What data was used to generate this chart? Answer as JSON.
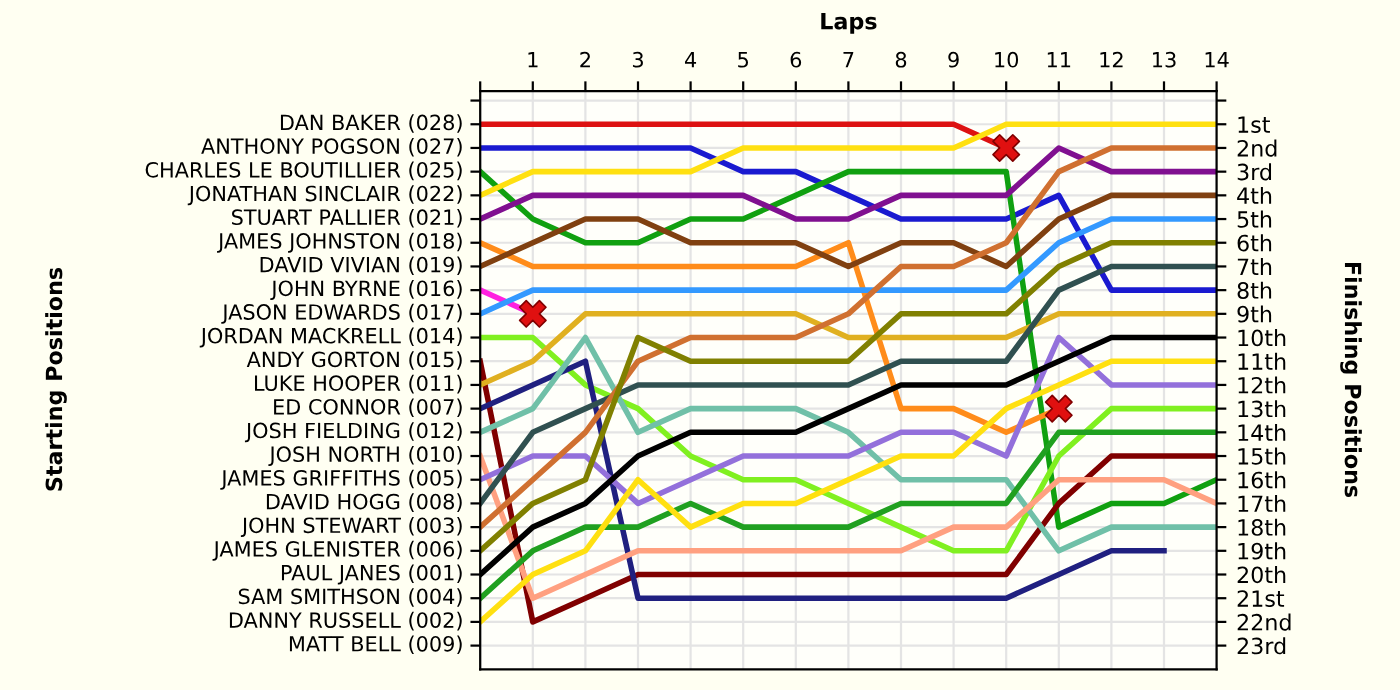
{
  "chart_data": {
    "type": "line",
    "xlabel": "Laps",
    "y2label": "Finishing Positions",
    "xlim": [
      0,
      14
    ],
    "xticks": [
      {
        "value": 0,
        "label": null
      },
      1,
      2,
      3,
      4,
      5,
      6,
      7,
      8,
      9,
      10,
      11,
      12,
      13,
      14
    ],
    "ylim": [
      24,
      -0.4
    ],
    "annotations": [
      "DAN BAKER (028)",
      "ANTHONY POGSON (027)",
      "CHARLES LE BOUTILLIER (025)",
      "JONATHAN SINCLAIR (022)",
      "STUART PALLIER (021)",
      "JAMES JOHNSTON (018)",
      "DAVID VIVIAN (019)",
      "JOHN BYRNE (016)",
      "JASON EDWARDS (017)",
      "JORDAN MACKRELL (014)",
      "ANDY GORTON (015)",
      "LUKE HOOPER (011)",
      "ED CONNOR (007)",
      "JOSH FIELDING (012)",
      "JOSH NORTH (010)",
      "JAMES GRIFFITHS (005)",
      "DAVID HOGG (008)",
      "JOHN STEWART (003)",
      "JAMES GLENISTER (006)",
      "PAUL JANES (001)",
      "SAM SMITHSON (004)",
      "DANNY RUSSELL (002)",
      "MATT BELL (009)",
      "Starting Positions"
    ],
    "yticks": [
      {
        "value": 0,
        "label": null
      },
      {
        "value": 1,
        "label": "1st"
      },
      {
        "value": 2,
        "label": "2nd"
      },
      {
        "value": 3,
        "label": "3rd"
      },
      {
        "value": 4,
        "label": "4th"
      },
      {
        "value": 5,
        "label": "5th"
      },
      {
        "value": 6,
        "label": "6th"
      },
      {
        "value": 7,
        "label": "7th"
      },
      {
        "value": 8,
        "label": "8th"
      },
      {
        "value": 9,
        "label": "9th"
      },
      {
        "value": 10,
        "label": "10th"
      },
      {
        "value": 11,
        "label": "11th"
      },
      {
        "value": 12,
        "label": "12th"
      },
      {
        "value": 13,
        "label": "13th"
      },
      {
        "value": 14,
        "label": "14th"
      },
      {
        "value": 15,
        "label": "15th"
      },
      {
        "value": 16,
        "label": "16th"
      },
      {
        "value": 17,
        "label": "17th"
      },
      {
        "value": 18,
        "label": "18th"
      },
      {
        "value": 19,
        "label": "19th"
      },
      {
        "value": 20,
        "label": "20th"
      },
      {
        "value": 21,
        "label": "21st"
      },
      {
        "value": 22,
        "label": "22nd"
      },
      {
        "value": 23,
        "label": "23rd"
      }
    ],
    "grid": true,
    "x": [
      0,
      1,
      2,
      3,
      4,
      5,
      6,
      7,
      8,
      9,
      10,
      11,
      12,
      13,
      14
    ],
    "series": [
      {
        "color": "#dd1111",
        "values": [
          1,
          1,
          1,
          1,
          1,
          1,
          1,
          1,
          1,
          1,
          2,
          null,
          null,
          null,
          null
        ]
      },
      {
        "color": "#1a1ad0",
        "values": [
          2,
          2,
          2,
          2,
          2,
          3,
          3,
          4,
          5,
          5,
          5,
          4,
          8,
          8,
          8
        ]
      },
      {
        "color": "#10a010",
        "values": [
          3,
          5,
          6,
          6,
          5,
          5,
          4,
          3,
          3,
          3,
          3,
          18,
          17,
          17,
          16
        ]
      },
      {
        "color": "#ffe010",
        "values": [
          4,
          3,
          3,
          3,
          3,
          2,
          2,
          2,
          2,
          2,
          1,
          1,
          1,
          1,
          1
        ]
      },
      {
        "color": "#801090",
        "values": [
          5,
          4,
          4,
          4,
          4,
          4,
          5,
          5,
          4,
          4,
          4,
          2,
          3,
          3,
          3
        ]
      },
      {
        "color": "#ff8c1a",
        "values": [
          6,
          7,
          7,
          7,
          7,
          7,
          7,
          6,
          13,
          13,
          14,
          13,
          null,
          null,
          null
        ]
      },
      {
        "color": "#804010",
        "values": [
          7,
          6,
          5,
          5,
          6,
          6,
          6,
          7,
          6,
          6,
          7,
          5,
          4,
          4,
          4
        ]
      },
      {
        "color": "#ff20e0",
        "values": [
          8,
          9,
          null,
          null,
          null,
          null,
          null,
          null,
          null,
          null,
          null,
          null,
          null,
          null,
          null
        ]
      },
      {
        "color": "#3399ff",
        "values": [
          9,
          8,
          8,
          8,
          8,
          8,
          8,
          8,
          8,
          8,
          8,
          6,
          5,
          5,
          5
        ]
      },
      {
        "color": "#80f020",
        "values": [
          10,
          10,
          12,
          13,
          15,
          16,
          16,
          17,
          18,
          19,
          19,
          15,
          13,
          13,
          13
        ]
      },
      {
        "color": "#800000",
        "values": [
          11,
          22,
          21,
          20,
          20,
          20,
          20,
          20,
          20,
          20,
          20,
          17,
          15,
          15,
          15
        ]
      },
      {
        "color": "#e0b020",
        "values": [
          12,
          11,
          9,
          9,
          9,
          9,
          9,
          10,
          10,
          10,
          10,
          9,
          9,
          9,
          9
        ]
      },
      {
        "color": "#202080",
        "values": [
          13,
          12,
          11,
          21,
          21,
          21,
          21,
          21,
          21,
          21,
          21,
          20,
          19,
          19,
          null
        ]
      },
      {
        "color": "#70c0a8",
        "values": [
          14,
          13,
          10,
          14,
          13,
          13,
          13,
          14,
          16,
          16,
          16,
          19,
          18,
          18,
          18
        ]
      },
      {
        "color": "#ffa080",
        "values": [
          15,
          21,
          20,
          19,
          19,
          19,
          19,
          19,
          19,
          18,
          18,
          16,
          16,
          16,
          17
        ]
      },
      {
        "color": "#9370db",
        "values": [
          16,
          15,
          15,
          17,
          16,
          15,
          15,
          15,
          14,
          14,
          15,
          10,
          12,
          12,
          12
        ]
      },
      {
        "color": "#305050",
        "values": [
          17,
          14,
          13,
          12,
          12,
          12,
          12,
          12,
          11,
          11,
          11,
          8,
          7,
          7,
          7
        ]
      },
      {
        "color": "#d07030",
        "values": [
          18,
          16,
          14,
          11,
          10,
          10,
          10,
          9,
          7,
          7,
          6,
          3,
          2,
          2,
          2
        ]
      },
      {
        "color": "#808000",
        "values": [
          19,
          17,
          16,
          10,
          11,
          11,
          11,
          11,
          9,
          9,
          9,
          7,
          6,
          6,
          6
        ]
      },
      {
        "color": "#000000",
        "values": [
          20,
          18,
          17,
          15,
          14,
          14,
          14,
          13,
          12,
          12,
          12,
          11,
          10,
          10,
          10
        ]
      },
      {
        "color": "#20a020",
        "values": [
          21,
          19,
          18,
          18,
          17,
          18,
          18,
          18,
          17,
          17,
          17,
          14,
          14,
          14,
          14
        ]
      },
      {
        "color": "#ffe010",
        "values": [
          22,
          20,
          19,
          16,
          18,
          17,
          17,
          16,
          15,
          15,
          13,
          12,
          11,
          11,
          11
        ]
      },
      {
        "type": "scatter",
        "marker": "cross",
        "color": "#e01010",
        "x": [
          10,
          1,
          11
        ],
        "values": [
          2,
          9,
          13
        ]
      }
    ]
  }
}
